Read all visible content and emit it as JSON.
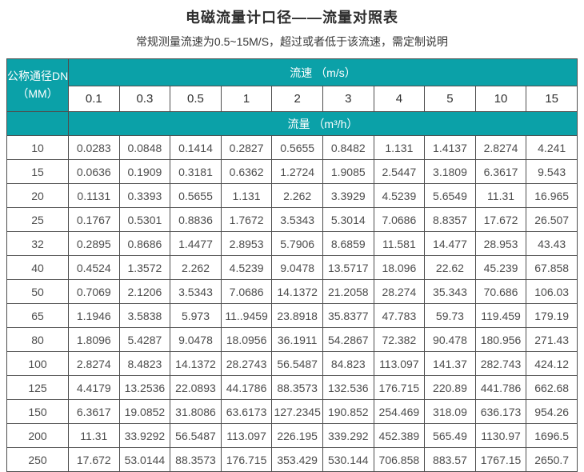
{
  "page": {
    "title": "电磁流量计口径——流量对照表",
    "subtitle": "常规测量流速为0.5~15M/S，超过或者低于该流速，需定制说明"
  },
  "table": {
    "corner_header_line1": "公称通径DN",
    "corner_header_line2": "（MM）",
    "velocity_header": "流速 （m/s）",
    "flow_header": "流量 （m³/h）",
    "velocity_columns": [
      "0.1",
      "0.3",
      "0.5",
      "1",
      "2",
      "3",
      "4",
      "5",
      "10",
      "15"
    ],
    "rows": [
      {
        "dn": "10",
        "values": [
          "0.0283",
          "0.0848",
          "0.1414",
          "0.2827",
          "0.5655",
          "0.8482",
          "1.131",
          "1.4137",
          "2.8274",
          "4.241"
        ]
      },
      {
        "dn": "15",
        "values": [
          "0.0636",
          "0.1909",
          "0.3181",
          "0.6362",
          "1.2724",
          "1.9085",
          "2.5447",
          "3.1809",
          "6.3617",
          "9.543"
        ]
      },
      {
        "dn": "20",
        "values": [
          "0.1131",
          "0.3393",
          "0.5655",
          "1.131",
          "2.262",
          "3.3929",
          "4.5239",
          "5.6549",
          "11.31",
          "16.965"
        ]
      },
      {
        "dn": "25",
        "values": [
          "0.1767",
          "0.5301",
          "0.8836",
          "1.7672",
          "3.5343",
          "5.3014",
          "7.0686",
          "8.8357",
          "17.672",
          "26.507"
        ]
      },
      {
        "dn": "32",
        "values": [
          "0.2895",
          "0.8686",
          "1.4477",
          "2.8953",
          "5.7906",
          "8.6859",
          "11.581",
          "14.477",
          "28.953",
          "43.43"
        ]
      },
      {
        "dn": "40",
        "values": [
          "0.4524",
          "1.3572",
          "2.262",
          "4.5239",
          "9.0478",
          "13.5717",
          "18.096",
          "22.62",
          "45.239",
          "67.858"
        ]
      },
      {
        "dn": "50",
        "values": [
          "0.7069",
          "2.1206",
          "3.5343",
          "7.0686",
          "14.1372",
          "21.2058",
          "28.274",
          "35.343",
          "70.686",
          "106.03"
        ]
      },
      {
        "dn": "65",
        "values": [
          "1.1946",
          "3.5838",
          "5.973",
          "11..9459",
          "23.8918",
          "35.8377",
          "47.783",
          "59.73",
          "119.459",
          "179.19"
        ]
      },
      {
        "dn": "80",
        "values": [
          "1.8096",
          "5.4287",
          "9.0478",
          "18.0956",
          "36.1911",
          "54.2867",
          "72.382",
          "90.478",
          "180.956",
          "271.43"
        ]
      },
      {
        "dn": "100",
        "values": [
          "2.8274",
          "8.4823",
          "14.1372",
          "28.2743",
          "56.5487",
          "84.823",
          "113.097",
          "141.37",
          "282.743",
          "424.12"
        ]
      },
      {
        "dn": "125",
        "values": [
          "4.4179",
          "13.2536",
          "22.0893",
          "44.1786",
          "88.3573",
          "132.536",
          "176.715",
          "220.89",
          "441.786",
          "662.68"
        ]
      },
      {
        "dn": "150",
        "values": [
          "6.3617",
          "19.0852",
          "31.8086",
          "63.6173",
          "127.2345",
          "190.852",
          "254.469",
          "318.09",
          "636.173",
          "954.26"
        ]
      },
      {
        "dn": "200",
        "values": [
          "11.31",
          "33.9292",
          "56.5487",
          "113.097",
          "226.195",
          "339.292",
          "452.389",
          "565.49",
          "1130.97",
          "1696.5"
        ]
      },
      {
        "dn": "250",
        "values": [
          "17.672",
          "53.0144",
          "88.3573",
          "176.715",
          "353.429",
          "530.144",
          "706.858",
          "883.57",
          "1767.15",
          "2650.7"
        ]
      }
    ]
  },
  "colors": {
    "teal_header": "#0ba1a8",
    "grid_border": "#4e4e4e",
    "number_text": "#4c4c4c"
  }
}
